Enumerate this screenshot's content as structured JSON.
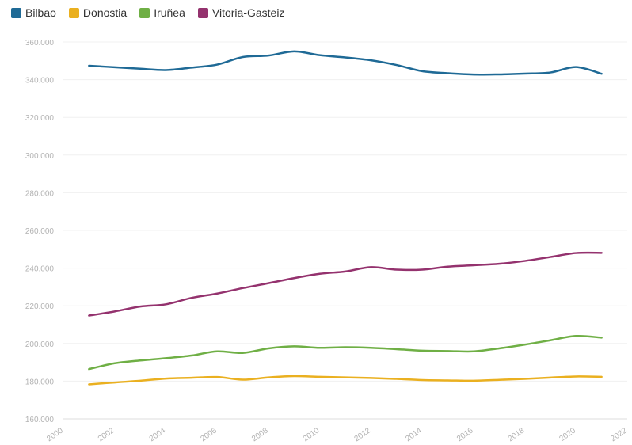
{
  "chart_data": {
    "type": "line",
    "x": [
      2001,
      2002,
      2003,
      2004,
      2005,
      2006,
      2007,
      2008,
      2009,
      2010,
      2011,
      2012,
      2013,
      2014,
      2015,
      2016,
      2017,
      2018,
      2019,
      2020,
      2021
    ],
    "series": [
      {
        "name": "Bilbao",
        "color": "#1f6a96",
        "values": [
          347400,
          346600,
          345800,
          345100,
          346400,
          348000,
          352000,
          352800,
          355000,
          353000,
          351800,
          350300,
          347800,
          344500,
          343400,
          342700,
          342800,
          343200,
          343800,
          346700,
          343100
        ]
      },
      {
        "name": "Donostia",
        "color": "#eab020",
        "values": [
          178300,
          179300,
          180200,
          181400,
          181800,
          182200,
          180800,
          182000,
          182700,
          182300,
          182000,
          181700,
          181200,
          180600,
          180400,
          180200,
          180700,
          181200,
          181900,
          182500,
          182300
        ]
      },
      {
        "name": "Iruñea",
        "color": "#6faf45",
        "values": [
          186400,
          189500,
          191000,
          192200,
          193600,
          195800,
          195000,
          197400,
          198500,
          197700,
          198000,
          197700,
          197000,
          196200,
          196000,
          195800,
          197400,
          199400,
          201700,
          204000,
          203100
        ]
      },
      {
        "name": "Vitoria-Gasteiz",
        "color": "#94326e",
        "values": [
          214800,
          217000,
          219600,
          220800,
          224200,
          226500,
          229400,
          232000,
          234700,
          237000,
          238200,
          240500,
          239200,
          239200,
          240800,
          241500,
          242300,
          243800,
          245900,
          248000,
          248100
        ]
      }
    ],
    "y_ticks": [
      "160.000",
      "180.000",
      "200.000",
      "220.000",
      "240.000",
      "260.000",
      "280.000",
      "300.000",
      "320.000",
      "340.000",
      "360.000"
    ],
    "x_ticks": [
      "2000",
      "2002",
      "2004",
      "2006",
      "2008",
      "2010",
      "2012",
      "2014",
      "2016",
      "2018",
      "2020",
      "2022"
    ],
    "ylim": [
      160000,
      360000
    ],
    "xlim": [
      2000,
      2022
    ],
    "grid": true,
    "legend_position": "top-left"
  }
}
